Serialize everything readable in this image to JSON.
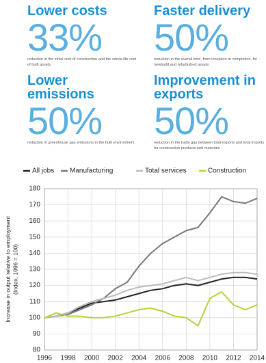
{
  "stats": [
    {
      "heading": "Lower costs",
      "figure": "33%",
      "description": "reduction in the initial cost of construction and the whole life cost of built assets"
    },
    {
      "heading": "Faster delivery",
      "figure": "50%",
      "description": "reduction in the overall time, from inception to completion, for newbuild and refurbished assets"
    },
    {
      "heading": "Lower emissions",
      "figure": "50%",
      "description": "reduction in greenhouse gas emissions in the built environment"
    },
    {
      "heading": "Improvement in exports",
      "figure": "50%",
      "description": "reduction in the trade gap between total exports and total imports for construction products and materials"
    }
  ],
  "chart_data": {
    "type": "line",
    "y_label": "Increase in output relative to employment",
    "y_label_note": "(Index, 1996 = 100)",
    "x": [
      1996,
      1997,
      1998,
      1999,
      2000,
      2001,
      2002,
      2003,
      2004,
      2005,
      2006,
      2007,
      2008,
      2009,
      2010,
      2011,
      2012,
      2013,
      2014
    ],
    "series": [
      {
        "name": "All jobs",
        "color": "#222222",
        "values": [
          100,
          101,
          103,
          106,
          109,
          110,
          111,
          113,
          115,
          117,
          118,
          120,
          121,
          120,
          122,
          124,
          125,
          125,
          124
        ]
      },
      {
        "name": "Manufacturing",
        "color": "#777777",
        "values": [
          100,
          101,
          102,
          105,
          108,
          112,
          118,
          122,
          132,
          140,
          146,
          150,
          154,
          156,
          165,
          175,
          172,
          171,
          174
        ]
      },
      {
        "name": "Total services",
        "color": "#bbbbbb",
        "values": [
          100,
          101,
          103,
          107,
          110,
          112,
          114,
          117,
          119,
          120,
          121,
          123,
          125,
          123,
          125,
          127,
          128,
          128,
          127
        ]
      },
      {
        "name": "Construction",
        "color": "#b5d334",
        "values": [
          100,
          103,
          101,
          101,
          100,
          100,
          101,
          103,
          105,
          106,
          104,
          101,
          100,
          95,
          112,
          116,
          108,
          105,
          108
        ]
      }
    ],
    "xlim": [
      1996,
      2014
    ],
    "xticks": [
      1996,
      1998,
      2000,
      2002,
      2004,
      2006,
      2008,
      2010,
      2012,
      2014
    ],
    "ylim": [
      80,
      180
    ],
    "yticks": [
      80,
      90,
      100,
      110,
      120,
      130,
      140,
      150,
      160,
      170,
      180
    ],
    "grid": true,
    "legend": "top"
  }
}
